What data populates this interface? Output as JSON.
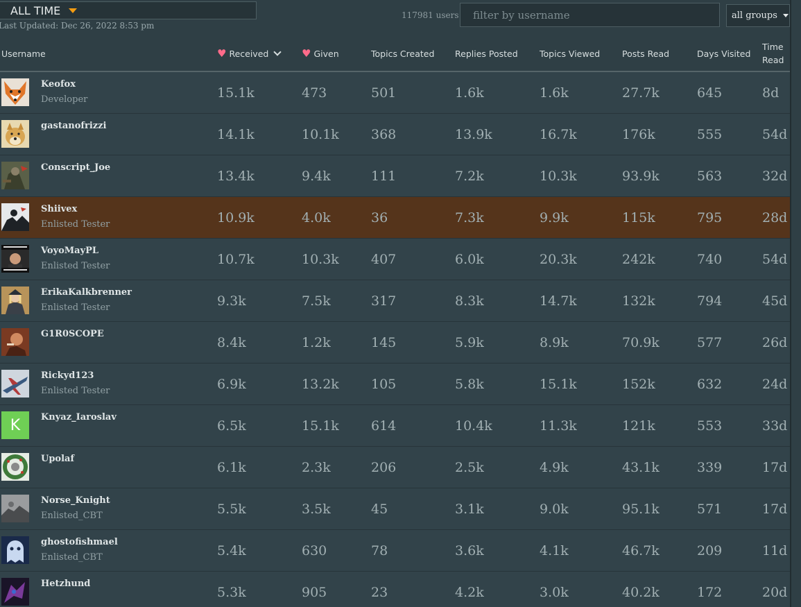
{
  "controls": {
    "period": "ALL TIME",
    "last_updated": "Last Updated: Dec 26, 2022 8:53 pm",
    "user_count": "117981 users",
    "filter_placeholder": "filter by username",
    "groups": "all groups"
  },
  "columns": {
    "username": "Username",
    "received": "Received",
    "given": "Given",
    "topics_created": "Topics Created",
    "replies_posted": "Replies Posted",
    "topics_viewed": "Topics Viewed",
    "posts_read": "Posts Read",
    "days_visited": "Days Visited",
    "time_read_1": "Time",
    "time_read_2": "Read"
  },
  "colors": {
    "highlight_row": "#55341b",
    "heart": "#ff6b8a",
    "caret": "#f39c12"
  },
  "rows": [
    {
      "username": "Keofox",
      "title": "Developer",
      "avatar": "fox",
      "received": "15.1k",
      "given": "473",
      "topics_created": "501",
      "replies_posted": "1.6k",
      "topics_viewed": "1.6k",
      "posts_read": "27.7k",
      "days_visited": "645",
      "time_read": "8d",
      "highlight": false
    },
    {
      "username": "gastanofrizzi",
      "title": "",
      "avatar": "doge",
      "received": "14.1k",
      "given": "10.1k",
      "topics_created": "368",
      "replies_posted": "13.9k",
      "topics_viewed": "16.7k",
      "posts_read": "176k",
      "days_visited": "555",
      "time_read": "54d",
      "highlight": false
    },
    {
      "username": "Conscript_Joe",
      "title": "",
      "avatar": "soldier",
      "received": "13.4k",
      "given": "9.4k",
      "topics_created": "111",
      "replies_posted": "7.2k",
      "topics_viewed": "10.3k",
      "posts_read": "93.9k",
      "days_visited": "563",
      "time_read": "32d",
      "highlight": false
    },
    {
      "username": "Shiivex",
      "title": "Enlisted Tester",
      "avatar": "silhouette",
      "received": "10.9k",
      "given": "4.0k",
      "topics_created": "36",
      "replies_posted": "7.3k",
      "topics_viewed": "9.9k",
      "posts_read": "115k",
      "days_visited": "795",
      "time_read": "28d",
      "highlight": true
    },
    {
      "username": "VoyoMayPL",
      "title": "Enlisted Tester",
      "avatar": "meme",
      "received": "10.7k",
      "given": "10.3k",
      "topics_created": "407",
      "replies_posted": "6.0k",
      "topics_viewed": "20.3k",
      "posts_read": "242k",
      "days_visited": "740",
      "time_read": "54d",
      "highlight": false
    },
    {
      "username": "ErikaKalkbrenner",
      "title": "Enlisted Tester",
      "avatar": "officer",
      "received": "9.3k",
      "given": "7.5k",
      "topics_created": "317",
      "replies_posted": "8.3k",
      "topics_viewed": "14.7k",
      "posts_read": "132k",
      "days_visited": "794",
      "time_read": "45d",
      "highlight": false
    },
    {
      "username": "G1R0SCOPE",
      "title": "",
      "avatar": "portrait",
      "received": "8.4k",
      "given": "1.2k",
      "topics_created": "145",
      "replies_posted": "5.9k",
      "topics_viewed": "8.9k",
      "posts_read": "70.9k",
      "days_visited": "577",
      "time_read": "26d",
      "highlight": false
    },
    {
      "username": "Rickyd123",
      "title": "Enlisted Tester",
      "avatar": "plane",
      "received": "6.9k",
      "given": "13.2k",
      "topics_created": "105",
      "replies_posted": "5.8k",
      "topics_viewed": "15.1k",
      "posts_read": "152k",
      "days_visited": "632",
      "time_read": "24d",
      "highlight": false
    },
    {
      "username": "Knyaz_Iaroslav",
      "title": "",
      "avatar": "letter",
      "avatar_letter": "K",
      "received": "6.5k",
      "given": "15.1k",
      "topics_created": "614",
      "replies_posted": "10.4k",
      "topics_viewed": "11.3k",
      "posts_read": "121k",
      "days_visited": "553",
      "time_read": "33d",
      "highlight": false
    },
    {
      "username": "Upolaf",
      "title": "",
      "avatar": "wreath",
      "received": "6.1k",
      "given": "2.3k",
      "topics_created": "206",
      "replies_posted": "2.5k",
      "topics_viewed": "4.9k",
      "posts_read": "43.1k",
      "days_visited": "339",
      "time_read": "17d",
      "highlight": false
    },
    {
      "username": "Norse_Knight",
      "title": "Enlisted_CBT",
      "avatar": "grayscale",
      "received": "5.5k",
      "given": "3.5k",
      "topics_created": "45",
      "replies_posted": "3.1k",
      "topics_viewed": "9.0k",
      "posts_read": "95.1k",
      "days_visited": "571",
      "time_read": "17d",
      "highlight": false
    },
    {
      "username": "ghostofishmael",
      "title": "Enlisted_CBT",
      "avatar": "ghost",
      "received": "5.4k",
      "given": "630",
      "topics_created": "78",
      "replies_posted": "3.6k",
      "topics_viewed": "4.1k",
      "posts_read": "46.7k",
      "days_visited": "209",
      "time_read": "11d",
      "highlight": false
    },
    {
      "username": "Hetzhund",
      "title": "",
      "avatar": "dark",
      "received": "5.3k",
      "given": "905",
      "topics_created": "23",
      "replies_posted": "4.2k",
      "topics_viewed": "3.0k",
      "posts_read": "40.2k",
      "days_visited": "172",
      "time_read": "20d",
      "highlight": false
    }
  ]
}
